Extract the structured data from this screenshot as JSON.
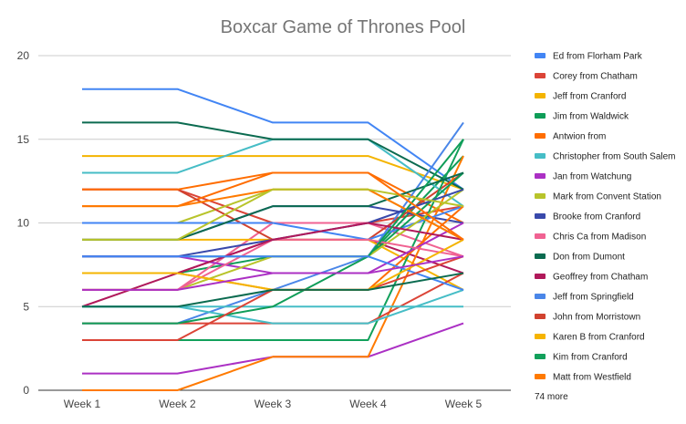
{
  "chart_data": {
    "type": "line",
    "title": "Boxcar Game of Thrones Pool",
    "xlabel": "",
    "ylabel": "",
    "categories": [
      "Week 1",
      "Week 2",
      "Week 3",
      "Week 4",
      "Week 5"
    ],
    "ylim": [
      0,
      20
    ],
    "yticks": [
      0,
      5,
      10,
      15,
      20
    ],
    "grid": true,
    "legend_position": "right",
    "legend_more": "74 more",
    "series": [
      {
        "name": "Ed from Florham Park",
        "color": "#4285F4",
        "values": [
          18,
          18,
          16,
          16,
          12
        ]
      },
      {
        "name": "Corey from Chatham",
        "color": "#DB4437",
        "values": [
          12,
          12,
          10,
          10,
          11
        ]
      },
      {
        "name": "Jeff from Cranford",
        "color": "#F4B400",
        "values": [
          14,
          14,
          14,
          14,
          12
        ]
      },
      {
        "name": "Jim from Waldwick",
        "color": "#0F9D58",
        "values": [
          7,
          7,
          8,
          8,
          14
        ]
      },
      {
        "name": "Antwion from",
        "color": "#FF6D00",
        "values": [
          11,
          11,
          13,
          13,
          10
        ]
      },
      {
        "name": "Christopher from South Salem",
        "color": "#46BDC6",
        "values": [
          13,
          13,
          15,
          15,
          11
        ]
      },
      {
        "name": "Jan from Watchung",
        "color": "#AB30C4",
        "values": [
          1,
          1,
          2,
          2,
          4
        ]
      },
      {
        "name": "Mark from Convent Station",
        "color": "#B8C42B",
        "values": [
          10,
          10,
          12,
          12,
          9
        ]
      },
      {
        "name": "Brooke from Cranford",
        "color": "#3949AB",
        "values": [
          9,
          9,
          11,
          11,
          10
        ]
      },
      {
        "name": "Chris Ca from Madison",
        "color": "#F06292",
        "values": [
          6,
          6,
          10,
          10,
          8
        ]
      },
      {
        "name": "Don from Dumont",
        "color": "#0B6B50",
        "values": [
          16,
          16,
          15,
          15,
          12
        ]
      },
      {
        "name": "Geoffrey from Chatham",
        "color": "#B0195A",
        "values": [
          5,
          7,
          9,
          9,
          7
        ]
      },
      {
        "name": "Jeff from Springfield",
        "color": "#4A86E8",
        "values": [
          4,
          4,
          6,
          8,
          16
        ]
      },
      {
        "name": "John from Morristown",
        "color": "#D1422F",
        "values": [
          12,
          12,
          9,
          9,
          13
        ]
      },
      {
        "name": "Karen B from Cranford",
        "color": "#F6B400",
        "values": [
          9,
          9,
          9,
          9,
          6
        ]
      },
      {
        "name": "Kim from Cranford",
        "color": "#12A05B",
        "values": [
          3,
          3,
          3,
          3,
          15
        ]
      },
      {
        "name": "Matt from Westfield",
        "color": "#FF7A00",
        "values": [
          0,
          0,
          2,
          2,
          14
        ]
      },
      {
        "name": "",
        "color": "#DB4437",
        "values": [
          4,
          4,
          4,
          4,
          7
        ]
      },
      {
        "name": "",
        "color": "#46BDC6",
        "values": [
          5,
          5,
          4,
          4,
          6
        ]
      },
      {
        "name": "",
        "color": "#4285F4",
        "values": [
          10,
          10,
          10,
          9,
          11
        ]
      },
      {
        "name": "",
        "color": "#0F9D58",
        "values": [
          8,
          8,
          8,
          8,
          13
        ]
      },
      {
        "name": "",
        "color": "#FF6D00",
        "values": [
          7,
          7,
          6,
          6,
          11
        ]
      },
      {
        "name": "",
        "color": "#AB30C4",
        "values": [
          8,
          8,
          7,
          7,
          10
        ]
      },
      {
        "name": "",
        "color": "#0B6B50",
        "values": [
          9,
          9,
          11,
          11,
          13
        ]
      },
      {
        "name": "",
        "color": "#B8C42B",
        "values": [
          6,
          6,
          8,
          8,
          12
        ]
      },
      {
        "name": "",
        "color": "#F06292",
        "values": [
          6,
          6,
          9,
          9,
          8
        ]
      },
      {
        "name": "",
        "color": "#3949AB",
        "values": [
          8,
          8,
          9,
          10,
          12
        ]
      },
      {
        "name": "",
        "color": "#B0195A",
        "values": [
          7,
          7,
          9,
          10,
          9
        ]
      },
      {
        "name": "",
        "color": "#FF7A00",
        "values": [
          11,
          11,
          12,
          12,
          9
        ]
      },
      {
        "name": "",
        "color": "#46BDC6",
        "values": [
          5,
          5,
          5,
          5,
          5
        ]
      },
      {
        "name": "",
        "color": "#0F9D58",
        "values": [
          4,
          4,
          5,
          8,
          15
        ]
      },
      {
        "name": "",
        "color": "#4285F4",
        "values": [
          8,
          8,
          8,
          8,
          6
        ]
      },
      {
        "name": "",
        "color": "#DB4437",
        "values": [
          3,
          3,
          6,
          6,
          8
        ]
      },
      {
        "name": "",
        "color": "#F4B400",
        "values": [
          7,
          7,
          6,
          6,
          9
        ]
      },
      {
        "name": "",
        "color": "#B8C42B",
        "values": [
          9,
          9,
          12,
          12,
          11
        ]
      },
      {
        "name": "",
        "color": "#0B6B50",
        "values": [
          5,
          5,
          6,
          6,
          7
        ]
      },
      {
        "name": "",
        "color": "#AB30C4",
        "values": [
          6,
          6,
          7,
          7,
          8
        ]
      },
      {
        "name": "",
        "color": "#FF6D00",
        "values": [
          12,
          12,
          13,
          13,
          9
        ]
      }
    ]
  }
}
